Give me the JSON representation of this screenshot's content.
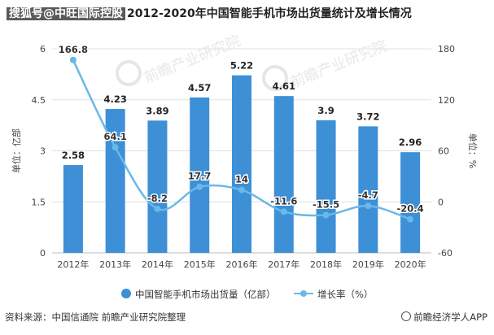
{
  "header": {
    "prefix": "搜狐号@中旺国际控股",
    "title": "2012-2020年中国智能手机市场出货量统计及增长情况"
  },
  "footer": {
    "source": "资料来源：中国信通院 前瞻产业研究院整理",
    "credit": "前瞻经济学人APP"
  },
  "watermark": {
    "text": "前瞻产业研究院"
  },
  "colors": {
    "bar": "#3d8fd6",
    "line": "#6ab8e8",
    "grid": "#e0e0e0",
    "axis": "#bfbfbf"
  },
  "chart_data": {
    "type": "bar",
    "categories": [
      "2012年",
      "2013年",
      "2014年",
      "2015年",
      "2016年",
      "2017年",
      "2018年",
      "2019年",
      "2020年"
    ],
    "series": [
      {
        "name": "中国智能手机市场出货量（亿部）",
        "type": "bar",
        "axis": "left",
        "values": [
          2.58,
          4.23,
          3.89,
          4.57,
          5.22,
          4.61,
          3.9,
          3.72,
          2.96
        ]
      },
      {
        "name": "增长率（%）",
        "type": "line",
        "axis": "right",
        "values": [
          166.8,
          64.1,
          -8.2,
          17.7,
          14,
          -11.6,
          -15.5,
          -4.7,
          -20.4
        ]
      }
    ],
    "ylabel_left": "单位：亿部",
    "ylabel_right": "单位：%",
    "ylim_left": [
      0,
      6
    ],
    "yticks_left": [
      "0",
      "1.5",
      "3",
      "4.5",
      "6"
    ],
    "ylim_right": [
      -60,
      180
    ],
    "yticks_right": [
      "-60",
      "0",
      "60",
      "120",
      "180"
    ],
    "grid": true,
    "legend": "bottom"
  }
}
